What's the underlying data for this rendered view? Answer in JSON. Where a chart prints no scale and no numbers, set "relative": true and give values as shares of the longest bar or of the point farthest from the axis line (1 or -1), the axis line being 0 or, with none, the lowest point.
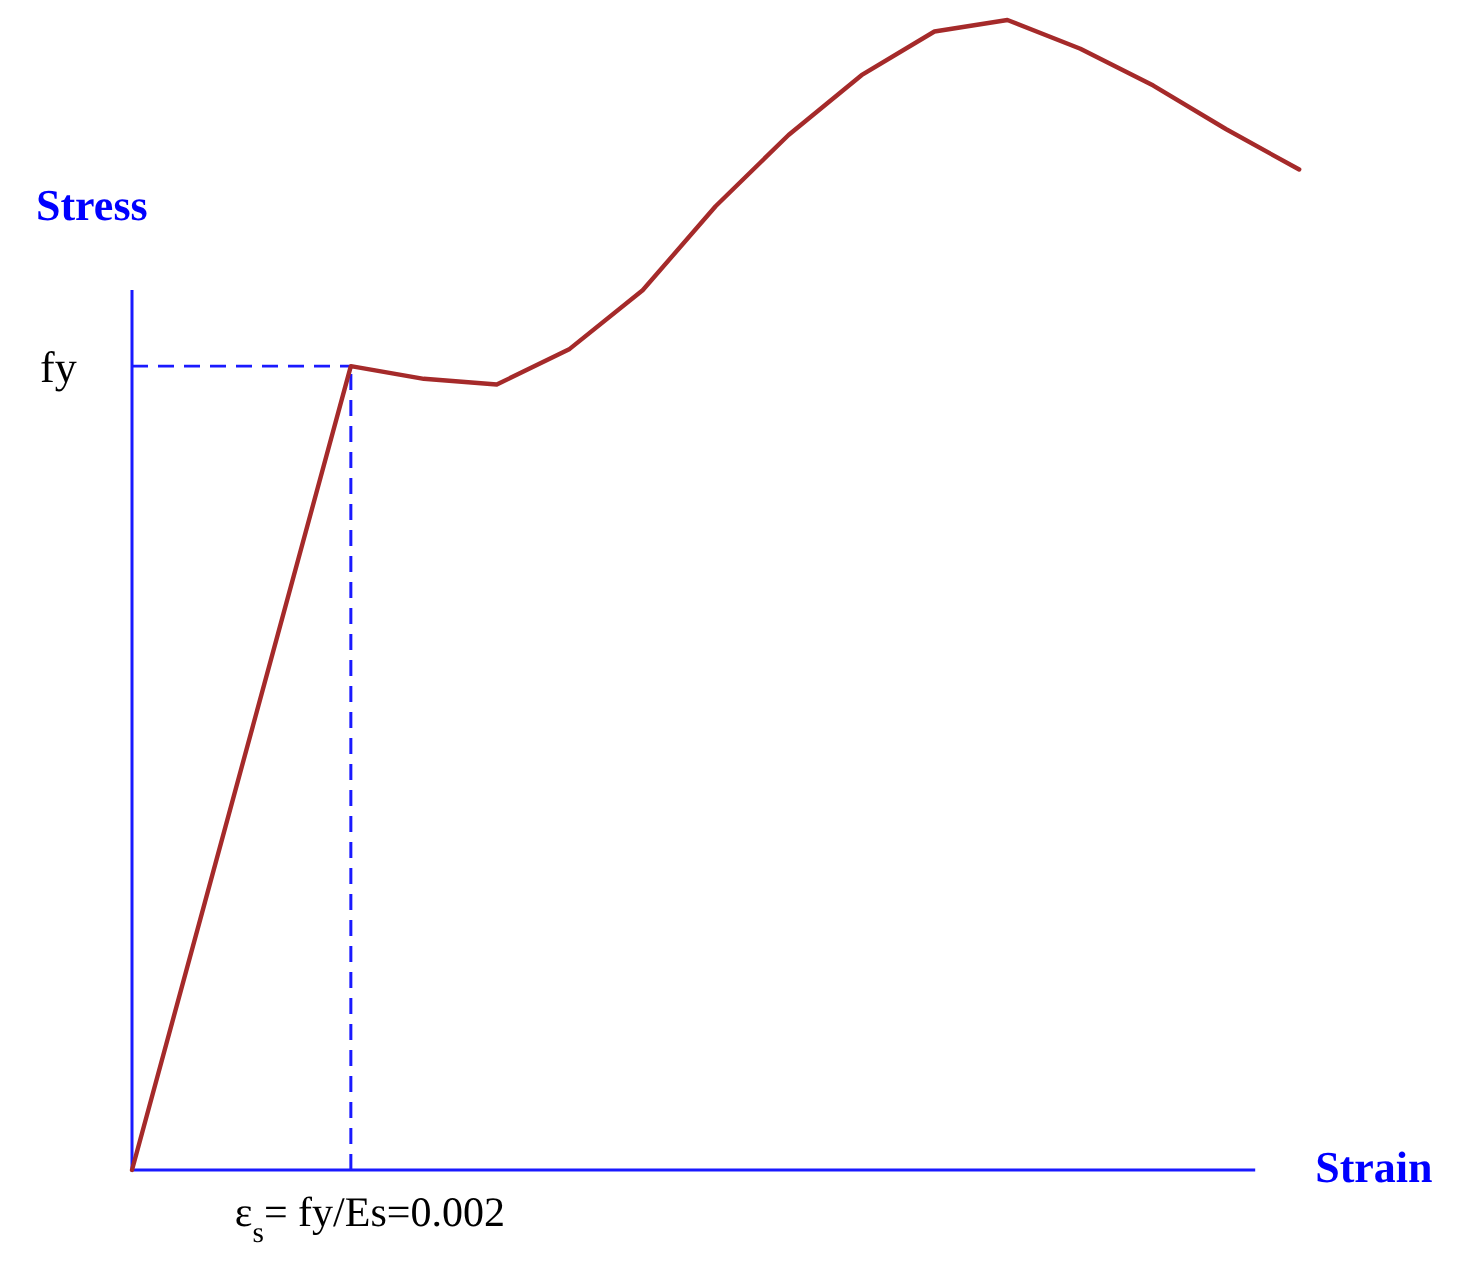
{
  "chart_data": {
    "type": "line",
    "relative": true,
    "xlabel": "Strain",
    "ylabel": "Stress",
    "categories": [
      null,
      null,
      null,
      null,
      null,
      null,
      null,
      null,
      null,
      null,
      null,
      null,
      null,
      null,
      null,
      null,
      null
    ],
    "marker": "none",
    "line_style": "solid",
    "series": [
      {
        "color": "#a52a2a",
        "values": [
          0,
          0.233,
          0.466,
          0.699,
          0.688,
          0.683,
          0.714,
          0.765,
          0.838,
          0.9,
          0.952,
          0.99,
          1,
          0.975,
          0.943,
          0.905,
          0.87
        ]
      }
    ],
    "ref_lines": [
      {
        "axis": "y",
        "value": 0.699,
        "label": "fy",
        "color": "#1a1aff",
        "line_style": "dashed"
      }
    ],
    "annotations": [
      "ε$_{s}$= fy/Es=0.002"
    ]
  }
}
